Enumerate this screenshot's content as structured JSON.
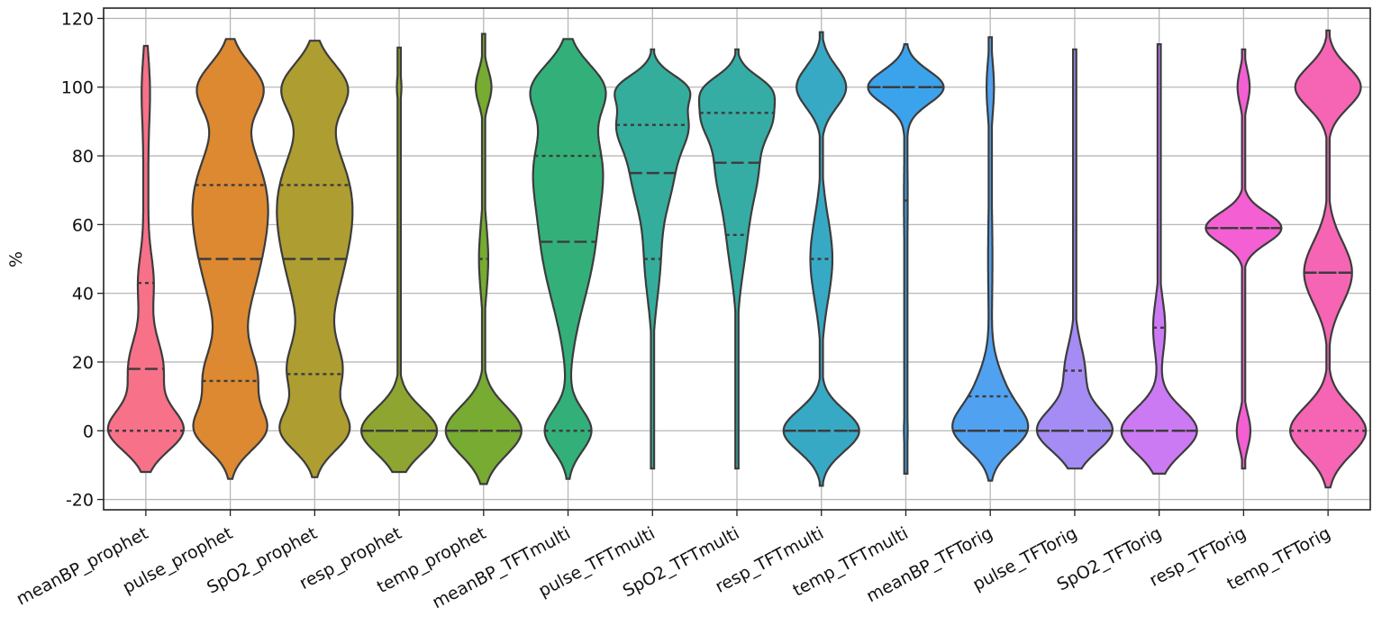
{
  "chart_data": {
    "type": "violin",
    "title": "",
    "xlabel": "",
    "ylabel": "%",
    "ylim": [
      -23,
      123
    ],
    "yticks": [
      -20,
      0,
      20,
      40,
      60,
      80,
      100,
      120
    ],
    "grid": true,
    "legend": "none",
    "categories": [
      "meanBP_prophet",
      "pulse_prophet",
      "SpO2_prophet",
      "resp_prophet",
      "temp_prophet",
      "meanBP_TFTmulti",
      "pulse_TFTmulti",
      "SpO2_TFTmulti",
      "resp_TFTmulti",
      "temp_TFTmulti",
      "meanBP_TFTorig",
      "pulse_TFTorig",
      "SpO2_TFTorig",
      "resp_TFTorig",
      "temp_TFTorig"
    ],
    "series": [
      {
        "color": "#f77189",
        "min": -12,
        "max": 112,
        "q1": 0,
        "median": 18,
        "q3": 43
      },
      {
        "color": "#dc8932",
        "min": -14,
        "max": 114,
        "q1": 14.5,
        "median": 50,
        "q3": 71.5
      },
      {
        "color": "#ae9d31",
        "min": -13.5,
        "max": 113.5,
        "q1": 16.5,
        "median": 50,
        "q3": 71.5
      },
      {
        "color": "#8ea631",
        "min": -12,
        "max": 111.5,
        "q1": 0,
        "median": 0,
        "q3": 0
      },
      {
        "color": "#77ab31",
        "min": -15.5,
        "max": 115.5,
        "q1": 0,
        "median": 0,
        "q3": 50
      },
      {
        "color": "#33b07a",
        "min": -14,
        "max": 114,
        "q1": 0,
        "median": 55,
        "q3": 80
      },
      {
        "color": "#35ad9c",
        "min": -11,
        "max": 111,
        "q1": 50,
        "median": 75,
        "q3": 89
      },
      {
        "color": "#36ada4",
        "min": -11,
        "max": 111,
        "q1": 57,
        "median": 78,
        "q3": 92.5
      },
      {
        "color": "#38a9c5",
        "min": -16,
        "max": 116,
        "q1": 0,
        "median": 0,
        "q3": 50
      },
      {
        "color": "#3ba3ec",
        "min": -12.5,
        "max": 112.5,
        "q1": 67,
        "median": 100,
        "q3": 100
      },
      {
        "color": "#50a1f0",
        "min": -14.5,
        "max": 114.5,
        "q1": 0,
        "median": 0,
        "q3": 10
      },
      {
        "color": "#a48cf4",
        "min": -11,
        "max": 111,
        "q1": 0,
        "median": 0,
        "q3": 17.5
      },
      {
        "color": "#cc7af4",
        "min": -12.5,
        "max": 112.5,
        "q1": 0,
        "median": 0,
        "q3": 30
      },
      {
        "color": "#f45fd3",
        "min": -11,
        "max": 111,
        "q1": 59,
        "median": 59,
        "q3": 59
      },
      {
        "color": "#f565b4",
        "min": -16.5,
        "max": 116.5,
        "q1": 0,
        "median": 46,
        "q3": 46
      }
    ]
  }
}
